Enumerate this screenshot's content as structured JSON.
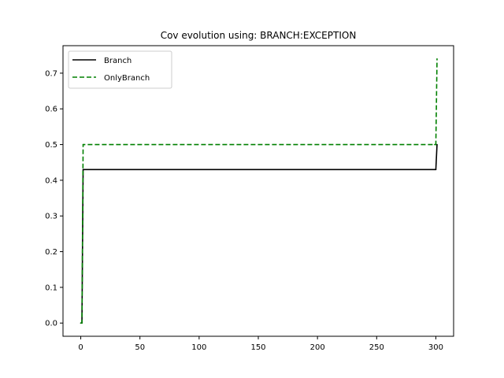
{
  "chart_data": {
    "type": "line",
    "title": "Cov evolution using: BRANCH:EXCEPTION",
    "xlabel": "",
    "ylabel": "",
    "xlim": [
      -15,
      315
    ],
    "ylim": [
      -0.037,
      0.777
    ],
    "xticks": [
      0,
      50,
      100,
      150,
      200,
      250,
      300
    ],
    "xtick_labels": [
      "0",
      "50",
      "100",
      "150",
      "200",
      "250",
      "300"
    ],
    "yticks": [
      0.0,
      0.1,
      0.2,
      0.3,
      0.4,
      0.5,
      0.6,
      0.7
    ],
    "ytick_labels": [
      "0.0",
      "0.1",
      "0.2",
      "0.3",
      "0.4",
      "0.5",
      "0.6",
      "0.7"
    ],
    "grid": false,
    "legend_position": "upper left",
    "series": [
      {
        "name": "Branch",
        "color": "#000000",
        "style": "solid",
        "x": [
          0,
          1,
          2,
          299,
          300,
          301
        ],
        "y": [
          0.0,
          0.0,
          0.43,
          0.43,
          0.43,
          0.5
        ]
      },
      {
        "name": "OnlyBranch",
        "color": "#008000",
        "style": "dashed",
        "x": [
          0,
          1,
          2,
          299,
          300,
          301
        ],
        "y": [
          0.0,
          0.0,
          0.5,
          0.5,
          0.5,
          0.74
        ]
      }
    ]
  }
}
